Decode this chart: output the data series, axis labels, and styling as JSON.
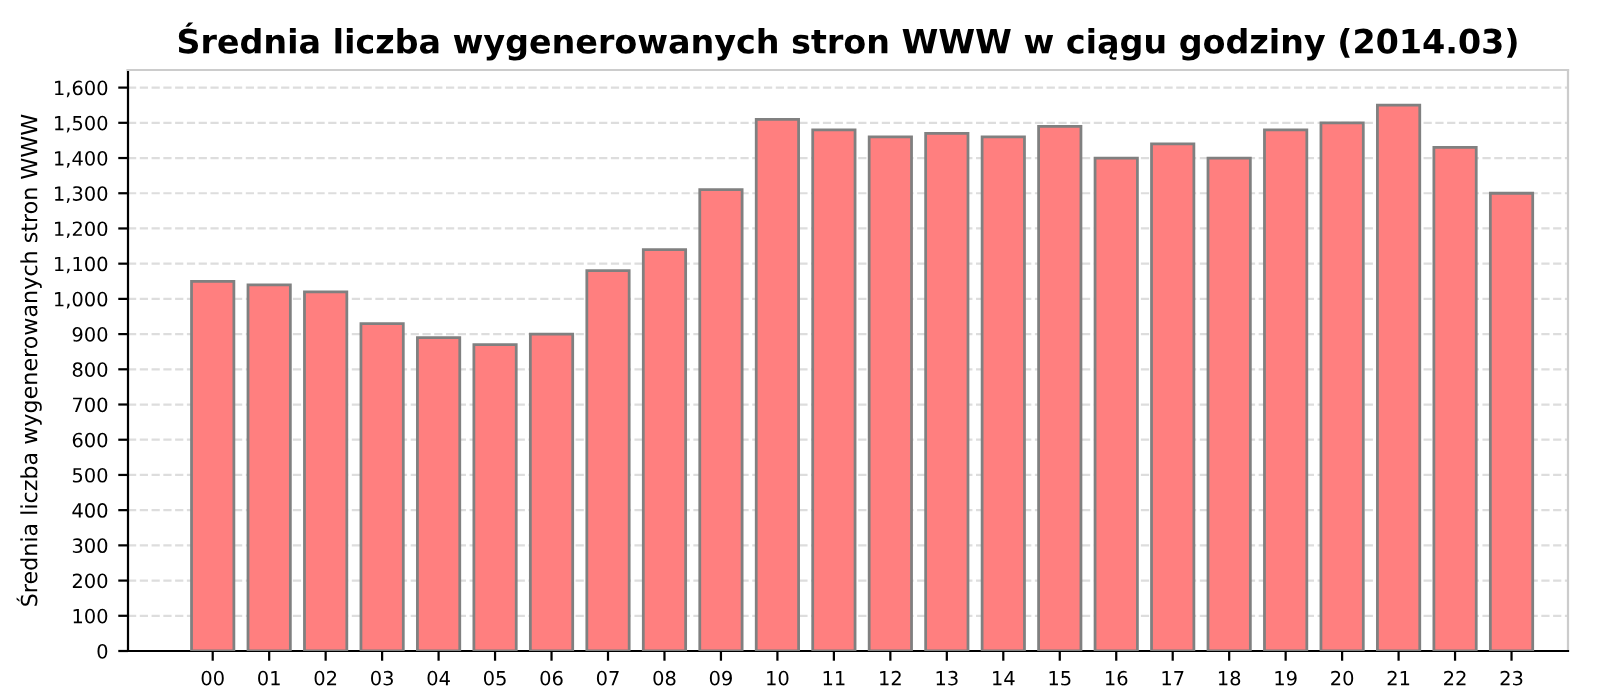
{
  "chart_data": {
    "type": "bar",
    "title": "Średnia liczba wygenerowanych stron WWW w ciągu godziny (2014.03)",
    "ylabel": "Średnia liczba wygenerowanych stron WWW",
    "categories": [
      "00",
      "01",
      "02",
      "03",
      "04",
      "05",
      "06",
      "07",
      "08",
      "09",
      "10",
      "11",
      "12",
      "13",
      "14",
      "15",
      "16",
      "17",
      "18",
      "19",
      "20",
      "21",
      "22",
      "23"
    ],
    "values": [
      1050,
      1040,
      1020,
      930,
      890,
      870,
      900,
      1080,
      1140,
      1310,
      1510,
      1480,
      1460,
      1470,
      1460,
      1490,
      1400,
      1440,
      1400,
      1480,
      1500,
      1550,
      1430,
      1300
    ],
    "color": "#ff7f7f",
    "ylim": [
      0,
      1650
    ],
    "yticks": [
      {
        "value": 0,
        "label": "0"
      },
      {
        "value": 100,
        "label": "100"
      },
      {
        "value": 200,
        "label": "200"
      },
      {
        "value": 300,
        "label": "300"
      },
      {
        "value": 400,
        "label": "400"
      },
      {
        "value": 500,
        "label": "500"
      },
      {
        "value": 600,
        "label": "600"
      },
      {
        "value": 700,
        "label": "700"
      },
      {
        "value": 800,
        "label": "800"
      },
      {
        "value": 900,
        "label": "900"
      },
      {
        "value": 1000,
        "label": "1,000"
      },
      {
        "value": 1100,
        "label": "1,100"
      },
      {
        "value": 1200,
        "label": "1,200"
      },
      {
        "value": 1300,
        "label": "1,300"
      },
      {
        "value": 1400,
        "label": "1,400"
      },
      {
        "value": 1500,
        "label": "1,500"
      },
      {
        "value": 1600,
        "label": "1,600"
      }
    ],
    "grid": "y"
  }
}
